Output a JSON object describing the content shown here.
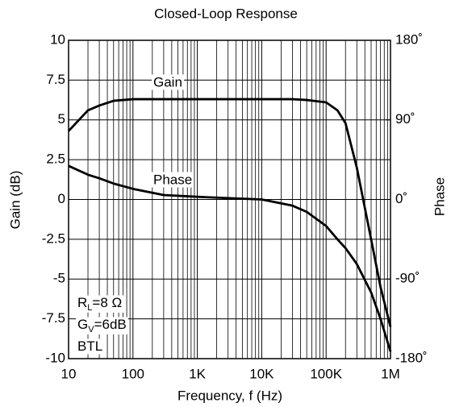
{
  "chart_data": {
    "type": "line",
    "title": "Closed-Loop Response",
    "xlabel": "Frequency, f (Hz)",
    "ylabel": "Gain (dB)",
    "y2label": "Phase",
    "xscale": "log",
    "grid": true,
    "x": [
      10,
      20,
      30,
      50,
      100,
      300,
      1000,
      10000,
      30000,
      50000,
      100000,
      150000,
      200000,
      300000,
      500000,
      700000,
      1000000
    ],
    "series": [
      {
        "name": "Gain",
        "color": "#000000",
        "values": [
          4.3,
          5.6,
          5.9,
          6.2,
          6.3,
          6.3,
          6.3,
          6.3,
          6.3,
          6.25,
          6.1,
          5.6,
          4.8,
          2.0,
          -2.5,
          -5.5,
          -8
        ]
      },
      {
        "name": "Phase",
        "color": "#000000",
        "axis": "y2",
        "values": [
          38,
          28,
          24,
          18,
          12,
          5,
          3,
          0,
          -7,
          -14,
          -30,
          -45,
          -55,
          -73,
          -105,
          -135,
          -172
        ]
      }
    ],
    "xlim": [
      10,
      1000000
    ],
    "xticks": [
      10,
      100,
      {
        "value": 1000,
        "label": "1K"
      },
      {
        "value": 10000,
        "label": "10K"
      },
      {
        "value": 100000,
        "label": "100K"
      },
      {
        "value": 1000000,
        "label": "1M"
      }
    ],
    "ylim": [
      -10,
      10
    ],
    "yticks": [
      -10,
      -7.5,
      -5,
      -2.5,
      0,
      2.5,
      5,
      7.5,
      10
    ],
    "y2lim": [
      -180,
      180
    ],
    "y2ticks": [
      {
        "value": -180,
        "label": "-180˚"
      },
      {
        "value": -90,
        "label": "-90˚"
      },
      {
        "value": 0,
        "label": "0˚"
      },
      {
        "value": 90,
        "label": "90˚"
      },
      {
        "value": 180,
        "label": "180˚"
      }
    ],
    "conditions": [
      {
        "main": "R",
        "sub": "L",
        "rest": "=8 Ω"
      },
      {
        "main": "G",
        "sub": "V",
        "rest": "=6dB"
      },
      {
        "main": "BTL"
      }
    ]
  }
}
